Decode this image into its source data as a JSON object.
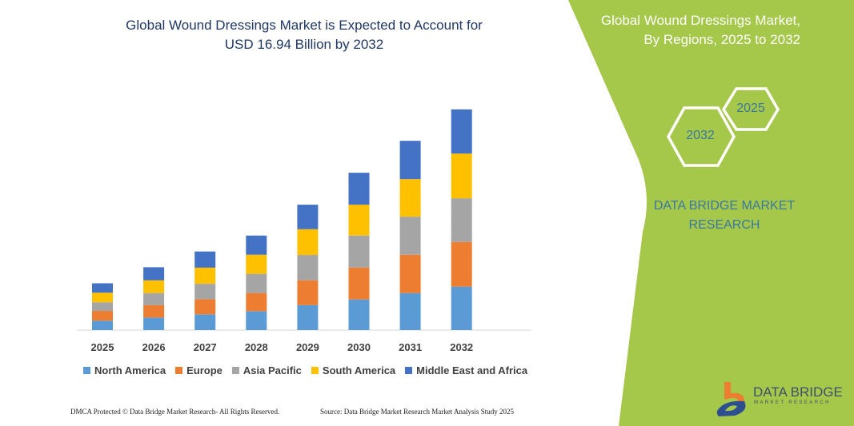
{
  "header": {
    "title_line1": "Global Wound Dressings Market is Expected to Account for",
    "title_line2": "USD 16.94 Billion by 2032"
  },
  "side_panel": {
    "title_line1": "Global Wound Dressings Market,",
    "title_line2": "By Regions, 2025 to 2032",
    "hex_start": "2025",
    "hex_end": "2032",
    "brand_line1": "DATA BRIDGE MARKET",
    "brand_line2": "RESEARCH",
    "logo_text": "DATA BRIDGE",
    "logo_sub": "MARKET RESEARCH",
    "panel_color": "#a5c84a"
  },
  "footer": {
    "left": "DMCA Protected © Data Bridge Market Research-  All Rights Reserved.",
    "right": "Source: Data Bridge Market Research  Market Analysis Study 2025"
  },
  "chart_data": {
    "type": "bar",
    "stacked": true,
    "categories": [
      "2025",
      "2026",
      "2027",
      "2028",
      "2029",
      "2030",
      "2031",
      "2032"
    ],
    "series": [
      {
        "name": "North America",
        "color": "#5b9bd5",
        "values": [
          0.72,
          0.96,
          1.21,
          1.45,
          1.92,
          2.35,
          2.84,
          3.33
        ]
      },
      {
        "name": "Europe",
        "color": "#ed7d31",
        "values": [
          0.75,
          0.96,
          1.16,
          1.39,
          1.9,
          2.45,
          2.94,
          3.43
        ]
      },
      {
        "name": "Asia Pacific",
        "color": "#a5a5a5",
        "values": [
          0.66,
          0.92,
          1.18,
          1.47,
          1.94,
          2.45,
          2.92,
          3.35
        ]
      },
      {
        "name": "South America",
        "color": "#ffc000",
        "values": [
          0.74,
          0.98,
          1.24,
          1.47,
          1.98,
          2.37,
          2.88,
          3.43
        ]
      },
      {
        "name": "Middle East and Africa",
        "color": "#4472c4",
        "values": [
          0.72,
          1.0,
          1.24,
          1.47,
          1.88,
          2.45,
          2.94,
          3.39
        ]
      }
    ],
    "ylim": [
      0,
      17
    ],
    "grid": false,
    "legend_position": "bottom"
  }
}
